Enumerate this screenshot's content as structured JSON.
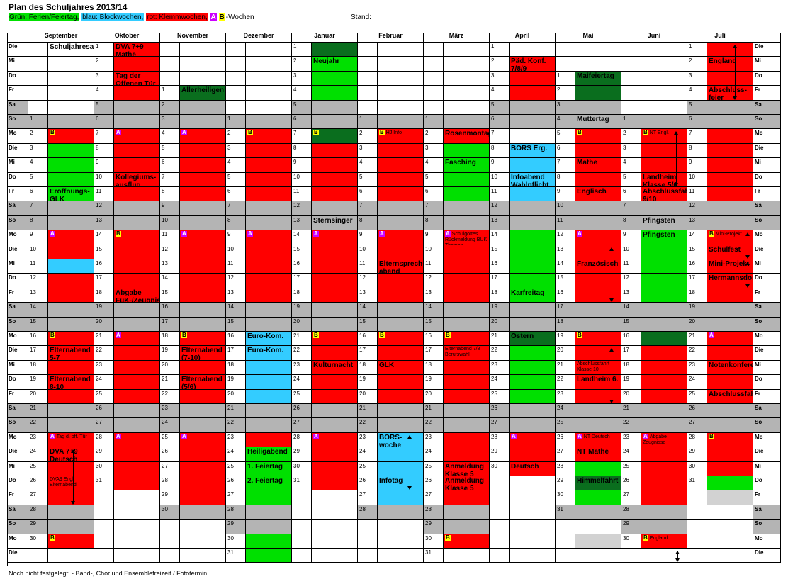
{
  "title": "Plan des Schuljahres 2013/14",
  "legend": {
    "green": "Grün: Ferien/Feiertag,",
    "blue": "blau: Blockwochen,",
    "red": "rot: Klemmwochen,",
    "a": "A",
    "b": "B",
    "suffix": "-Wochen"
  },
  "stand": "Stand:",
  "footer_note": "Noch nicht festgelegt: - Band-, Chor und Ensemblefreizeit / Fototermin",
  "colors": {
    "green": "#00e000",
    "dark_green": "#0a6e1e",
    "red": "#ff0000",
    "blue": "#33ccff",
    "grey": "#b4b4b4",
    "light_grey": "#d2d2d2",
    "white": "#ffffff",
    "badge_a": "#cc00ff",
    "badge_b": "#ffff00"
  },
  "months": [
    "September",
    "Oktober",
    "November",
    "Dezember",
    "Januar",
    "Februar",
    "März",
    "April",
    "Mai",
    "Juni",
    "Juli"
  ],
  "weekdays": [
    "Die",
    "Mi",
    "Do",
    "Fr",
    "Sa",
    "So",
    "Mo",
    "Die",
    "Mi",
    "Do",
    "Fr",
    "Sa",
    "So",
    "Mo",
    "Die",
    "Mi",
    "Do",
    "Fr",
    "Sa",
    "So",
    "Mo",
    "Die",
    "Mi",
    "Do",
    "Fr",
    "Sa",
    "So",
    "Mo",
    "Die",
    "Mi",
    "Do",
    "Fr",
    "Sa",
    "So",
    "Mo",
    "Die"
  ],
  "months_data": [
    {
      "nums": [
        "",
        "",
        "",
        "",
        "",
        "1",
        "2",
        "3",
        "4",
        "5",
        "6",
        "7",
        "8",
        "9",
        "10",
        "11",
        "12",
        "13",
        "14",
        "15",
        "16",
        "17",
        "18",
        "19",
        "20",
        "21",
        "22",
        "23",
        "24",
        "25",
        "26",
        "27",
        "28",
        "29",
        "30",
        ""
      ],
      "cols": [
        "W",
        "W",
        "W",
        "W",
        "G",
        "G",
        "R",
        "G",
        "G",
        "G",
        "G",
        "G",
        "G",
        "R",
        "R",
        "B",
        "R",
        "R",
        "G",
        "G",
        "R",
        "R",
        "R",
        "R",
        "R",
        "G",
        "G",
        "R",
        "R",
        "R",
        "R",
        "R",
        "G",
        "G",
        "R",
        "W"
      ],
      "ev": {
        "0": "Schuljahresanfang",
        "6": "B",
        "10": "Eröffnungs-GLK",
        "13": "A",
        "20": "B",
        "21": "Elternabend 5-7",
        "23": "Elternabend 8-10",
        "27": "A Tag d. off. Tür",
        "28": "DVA 7+9 Deutsch",
        "30": "DVA9 Engl. Elternabend",
        "34": "B"
      }
    },
    {
      "nums": [
        "1",
        "2",
        "3",
        "4",
        "5",
        "6",
        "7",
        "8",
        "9",
        "10",
        "11",
        "12",
        "13",
        "14",
        "15",
        "16",
        "17",
        "18",
        "19",
        "20",
        "21",
        "22",
        "23",
        "24",
        "25",
        "26",
        "27",
        "28",
        "29",
        "30",
        "31",
        "",
        "",
        "",
        "",
        ""
      ],
      "cols": [
        "R",
        "R",
        "R",
        "R",
        "G",
        "G",
        "R",
        "R",
        "R",
        "R",
        "R",
        "G",
        "G",
        "R",
        "R",
        "R",
        "R",
        "R",
        "G",
        "G",
        "R",
        "R",
        "R",
        "R",
        "R",
        "G",
        "G",
        "R",
        "R",
        "R",
        "R",
        "R",
        "W",
        "W",
        "W",
        "W"
      ],
      "ev": {
        "0": "DVA 7+9 Mathe",
        "2": "Tag der Offenen Tür",
        "6": "A",
        "9": "Kollegiums-ausflug",
        "13": "B",
        "17": "Abgabe FüK-/Zeugnisse",
        "20": "A",
        "27": "A"
      }
    },
    {
      "nums": [
        "",
        "",
        "",
        "1",
        "2",
        "3",
        "4",
        "5",
        "6",
        "7",
        "8",
        "9",
        "10",
        "11",
        "12",
        "13",
        "14",
        "15",
        "16",
        "17",
        "18",
        "19",
        "20",
        "21",
        "22",
        "23",
        "24",
        "25",
        "26",
        "27",
        "28",
        "29",
        "30",
        "",
        "",
        ""
      ],
      "cols": [
        "W",
        "W",
        "W",
        "D",
        "G",
        "G",
        "R",
        "R",
        "R",
        "R",
        "R",
        "G",
        "G",
        "R",
        "R",
        "R",
        "R",
        "R",
        "G",
        "G",
        "R",
        "R",
        "R",
        "R",
        "R",
        "G",
        "G",
        "R",
        "R",
        "R",
        "R",
        "R",
        "G",
        "W",
        "W",
        "W"
      ],
      "ev": {
        "3": "Allerheiligen",
        "6": "A",
        "13": "A",
        "20": "B",
        "21": "Elternabend (7-10)",
        "23": "Elternabend (5/6)",
        "27": "A"
      }
    },
    {
      "nums": [
        "",
        "",
        "",
        "",
        "",
        "1",
        "2",
        "3",
        "4",
        "5",
        "6",
        "7",
        "8",
        "9",
        "10",
        "11",
        "12",
        "13",
        "14",
        "15",
        "16",
        "17",
        "18",
        "19",
        "20",
        "21",
        "22",
        "23",
        "24",
        "25",
        "26",
        "27",
        "28",
        "29",
        "30",
        "31"
      ],
      "cols": [
        "W",
        "W",
        "W",
        "W",
        "G",
        "G",
        "R",
        "R",
        "R",
        "R",
        "R",
        "G",
        "G",
        "R",
        "R",
        "R",
        "R",
        "R",
        "G",
        "G",
        "B",
        "B",
        "B",
        "B",
        "B",
        "G",
        "G",
        "R",
        "G",
        "G",
        "G",
        "G",
        "G",
        "G",
        "G",
        "G"
      ],
      "ev": {
        "6": "B",
        "13": "A",
        "20": "Euro-Kom.",
        "21": "Euro-Kom.",
        "28": "Heiligabend",
        "29": "1. Feiertag",
        "30": "2. Feiertag"
      }
    },
    {
      "nums": [
        "1",
        "2",
        "3",
        "4",
        "5",
        "6",
        "7",
        "8",
        "9",
        "10",
        "11",
        "12",
        "13",
        "14",
        "15",
        "16",
        "17",
        "18",
        "19",
        "20",
        "21",
        "22",
        "23",
        "24",
        "25",
        "26",
        "27",
        "28",
        "29",
        "30",
        "31",
        "",
        "",
        "",
        "",
        ""
      ],
      "cols": [
        "D",
        "G",
        "G",
        "G",
        "G",
        "G",
        "D",
        "R",
        "R",
        "R",
        "R",
        "G",
        "G",
        "R",
        "R",
        "R",
        "R",
        "R",
        "G",
        "G",
        "R",
        "R",
        "R",
        "R",
        "R",
        "G",
        "G",
        "R",
        "R",
        "R",
        "R",
        "W",
        "W",
        "W",
        "W",
        "W"
      ],
      "ev": {
        "1": "Neujahr",
        "6": "B",
        "12": "Sternsinger",
        "13": "A",
        "20": "B",
        "22": "Kulturnacht",
        "27": "A"
      }
    },
    {
      "nums": [
        "",
        "",
        "",
        "",
        "",
        "1",
        "2",
        "3",
        "4",
        "5",
        "6",
        "7",
        "8",
        "9",
        "10",
        "11",
        "12",
        "13",
        "14",
        "15",
        "16",
        "17",
        "18",
        "19",
        "20",
        "21",
        "22",
        "23",
        "24",
        "25",
        "26",
        "27",
        "28",
        "",
        "",
        ""
      ],
      "cols": [
        "W",
        "W",
        "W",
        "W",
        "G",
        "G",
        "R",
        "R",
        "R",
        "R",
        "R",
        "G",
        "G",
        "R",
        "R",
        "R",
        "R",
        "R",
        "G",
        "G",
        "R",
        "R",
        "R",
        "R",
        "R",
        "G",
        "G",
        "B",
        "B",
        "B",
        "B",
        "B",
        "G",
        "W",
        "W",
        "W"
      ],
      "ev": {
        "6": "B HJ Info",
        "13": "A",
        "15": "Elternsprech-abend",
        "20": "B",
        "22": "GLK",
        "27": "BORS-woche",
        "30": "Infotag"
      }
    },
    {
      "nums": [
        "",
        "",
        "",
        "",
        "",
        "1",
        "2",
        "3",
        "4",
        "5",
        "6",
        "7",
        "8",
        "9",
        "10",
        "11",
        "12",
        "13",
        "14",
        "15",
        "16",
        "17",
        "18",
        "19",
        "20",
        "21",
        "22",
        "23",
        "24",
        "25",
        "26",
        "27",
        "28",
        "29",
        "30",
        "31"
      ],
      "cols": [
        "W",
        "W",
        "W",
        "W",
        "G",
        "G",
        "R",
        "G",
        "G",
        "G",
        "G",
        "G",
        "G",
        "R",
        "R",
        "R",
        "R",
        "R",
        "G",
        "G",
        "R",
        "R",
        "R",
        "R",
        "R",
        "G",
        "G",
        "R",
        "R",
        "R",
        "R",
        "R",
        "G",
        "G",
        "R",
        "W"
      ],
      "ev": {
        "6": "Rosenmontag",
        "8": "Fasching",
        "13": "A Schulgottes. Rückmeldung BUK Themen",
        "20": "B",
        "21": "Elternabend 7/8 Berufswahl",
        "29": "Anmeldung Klasse 5",
        "30": "Anmeldung Klasse 5",
        "34": "B"
      }
    },
    {
      "nums": [
        "1",
        "2",
        "3",
        "4",
        "5",
        "6",
        "7",
        "8",
        "9",
        "10",
        "11",
        "12",
        "13",
        "14",
        "15",
        "16",
        "17",
        "18",
        "19",
        "20",
        "21",
        "22",
        "23",
        "24",
        "25",
        "26",
        "27",
        "28",
        "29",
        "30",
        "",
        "",
        "",
        "",
        "",
        ""
      ],
      "cols": [
        "W",
        "R",
        "R",
        "R",
        "G",
        "G",
        "W",
        "B",
        "B",
        "B",
        "B",
        "G",
        "G",
        "G",
        "G",
        "G",
        "G",
        "G",
        "G",
        "G",
        "D",
        "G",
        "G",
        "G",
        "G",
        "G",
        "G",
        "R",
        "R",
        "R",
        "W",
        "W",
        "W",
        "W",
        "W",
        "W"
      ],
      "ev": {
        "1": "Päd. Konf. 7/8/9",
        "7": "BORS Erg.",
        "9": "Infoabend Wahlpflicht",
        "17": "Karfreitag",
        "20": "Ostern",
        "27": "A",
        "29": "Deutsch"
      }
    },
    {
      "nums": [
        "",
        "",
        "1",
        "2",
        "3",
        "4",
        "5",
        "6",
        "7",
        "8",
        "9",
        "10",
        "11",
        "12",
        "13",
        "14",
        "15",
        "16",
        "17",
        "18",
        "19",
        "20",
        "21",
        "22",
        "23",
        "24",
        "25",
        "26",
        "27",
        "28",
        "29",
        "30",
        "31",
        "",
        "",
        ""
      ],
      "cols": [
        "W",
        "W",
        "D",
        "D",
        "G",
        "G",
        "R",
        "R",
        "R",
        "R",
        "R",
        "G",
        "G",
        "R",
        "R",
        "R",
        "R",
        "R",
        "G",
        "G",
        "R",
        "R",
        "R",
        "R",
        "R",
        "G",
        "G",
        "R",
        "R",
        "G",
        "D",
        "G",
        "G",
        "W",
        "L",
        "W"
      ],
      "ev": {
        "2": "Maifeiertag",
        "5": "Muttertag",
        "6": "B",
        "8": "Mathe",
        "10": "Englisch",
        "13": "A",
        "15": "Französisch",
        "20": "B",
        "22": "Abschlussfahrt Klasse 10",
        "23": "Landheim 6.",
        "27": "A NT Deutsch",
        "28": "NT Mathe",
        "30": "Himmelfahrt"
      }
    },
    {
      "nums": [
        "",
        "",
        "",
        "",
        "",
        "1",
        "2",
        "3",
        "4",
        "5",
        "6",
        "7",
        "8",
        "9",
        "10",
        "11",
        "12",
        "13",
        "14",
        "15",
        "16",
        "17",
        "18",
        "19",
        "20",
        "21",
        "22",
        "23",
        "24",
        "25",
        "26",
        "27",
        "28",
        "29",
        "30",
        ""
      ],
      "cols": [
        "W",
        "W",
        "W",
        "W",
        "G",
        "G",
        "R",
        "R",
        "R",
        "R",
        "R",
        "G",
        "G",
        "G",
        "G",
        "G",
        "G",
        "G",
        "G",
        "G",
        "D",
        "R",
        "R",
        "R",
        "R",
        "G",
        "G",
        "R",
        "R",
        "R",
        "R",
        "R",
        "G",
        "G",
        "R",
        "W"
      ],
      "ev": {
        "6": "B NT Engl.",
        "9": "Landheim Klasse 5/6",
        "10": "Abschlussfahrt 9/10",
        "12": "Pfingsten",
        "13": "Pfingsten",
        "27": "A Abgabe Zeugnisse",
        "34": "B England"
      }
    },
    {
      "nums": [
        "1",
        "2",
        "3",
        "4",
        "5",
        "6",
        "7",
        "8",
        "9",
        "10",
        "11",
        "12",
        "13",
        "14",
        "15",
        "16",
        "17",
        "18",
        "19",
        "20",
        "21",
        "22",
        "23",
        "24",
        "25",
        "26",
        "27",
        "28",
        "29",
        "30",
        "31",
        "",
        "",
        "",
        "",
        ""
      ],
      "cols": [
        "R",
        "R",
        "R",
        "R",
        "G",
        "G",
        "R",
        "R",
        "R",
        "R",
        "R",
        "G",
        "G",
        "R",
        "R",
        "R",
        "R",
        "R",
        "G",
        "G",
        "R",
        "R",
        "R",
        "R",
        "R",
        "G",
        "G",
        "R",
        "R",
        "R",
        "G",
        "L",
        "W",
        "W",
        "W",
        "W"
      ],
      "ev": {
        "1": "England",
        "3": "Abschluss-feier",
        "13": "B Mini-Projekt",
        "14": "Schulfest",
        "15": "Mini-Projekt",
        "16": "Hermannsdorf",
        "20": "A",
        "22": "Notenkonferenz",
        "24": "Abschlussfahrt",
        "27": "B"
      }
    }
  ]
}
